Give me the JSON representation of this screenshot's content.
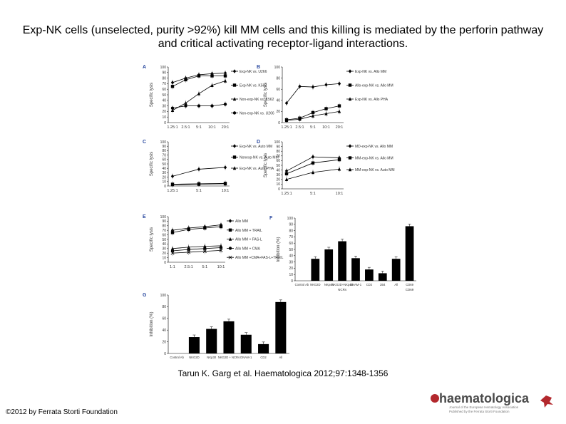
{
  "slide": {
    "title": "Exp-NK cells (unselected, purity >92%) kill MM cells and this killing is mediated by the perforin pathway and critical activating receptor-ligand interactions.",
    "citation": "Tarun K. Garg et al. Haematologica 2012;97:1348-1356",
    "copyright": "©2012 by Ferrata Storti Foundation",
    "logo": {
      "wordmark": "haematologica",
      "tagline_1": "Journal of the European Hematology Association",
      "tagline_2": "Published by the Ferrata Storti Foundation",
      "accent_color": "#b3282d",
      "text_color": "#4a4a4a"
    }
  },
  "chart_data": [
    {
      "panel": "A",
      "type": "line",
      "ylabel": "Specific lysis",
      "ylim": [
        0,
        100
      ],
      "yticks": [
        0,
        10,
        20,
        30,
        40,
        50,
        60,
        70,
        80,
        90,
        100
      ],
      "categories": [
        "1.25:1",
        "2.5:1",
        "5:1",
        "10:1",
        "20:1"
      ],
      "series": [
        {
          "name": "Exp-NK vs. U266",
          "values": [
            72,
            80,
            86,
            88,
            89
          ]
        },
        {
          "name": "Exp-NK vs. K562",
          "values": [
            65,
            77,
            84,
            84,
            84
          ]
        },
        {
          "name": "Non-exp-NK vs. K562",
          "values": [
            22,
            35,
            52,
            67,
            75
          ]
        },
        {
          "name": "Non-exp-NK vs. U266",
          "values": [
            26,
            30,
            30,
            30,
            33
          ]
        }
      ]
    },
    {
      "panel": "B",
      "type": "line",
      "ylabel": "Specific lysis",
      "ylim": [
        0,
        100
      ],
      "yticks": [
        0,
        20,
        40,
        60,
        80,
        100
      ],
      "categories": [
        "1.25:1",
        "2.5:1",
        "5:1",
        "10:1",
        "20:1"
      ],
      "series": [
        {
          "name": "Exp-NK vs. Allo MM",
          "values": [
            35,
            65,
            64,
            68,
            70
          ]
        },
        {
          "name": "Allo-exp-NK vs. Allo MM",
          "values": [
            5,
            8,
            18,
            25,
            30
          ]
        },
        {
          "name": "Exp-NK vs. Allo PHA",
          "values": [
            4,
            6,
            12,
            16,
            20
          ]
        }
      ]
    },
    {
      "panel": "C",
      "type": "line",
      "ylabel": "Specific lysis",
      "ylim": [
        0,
        100
      ],
      "yticks": [
        0,
        10,
        20,
        30,
        40,
        50,
        60,
        70,
        80,
        90,
        100
      ],
      "categories": [
        "1.25:1",
        "5:1",
        "10:1"
      ],
      "series": [
        {
          "name": "Exp-NK vs. Auto MM",
          "values": [
            22,
            38,
            42
          ]
        },
        {
          "name": "Nonexp-NK vs. Auto MM",
          "values": [
            4,
            5,
            6
          ]
        },
        {
          "name": "Exp-NK vs. Auto PHA",
          "values": [
            3,
            4,
            5
          ]
        }
      ]
    },
    {
      "panel": "D",
      "type": "line",
      "ylabel": "Specific lysis",
      "ylim": [
        0,
        100
      ],
      "yticks": [
        0,
        10,
        20,
        30,
        40,
        50,
        60,
        70,
        80,
        90,
        100
      ],
      "categories": [
        "1.25:1",
        "5:1",
        "10:1"
      ],
      "series": [
        {
          "name": "MD-exp-NK vs. Allo MM",
          "values": [
            38,
            68,
            66
          ]
        },
        {
          "name": "MM-exp-NK vs. Allo MM",
          "values": [
            32,
            55,
            62
          ]
        },
        {
          "name": "MM-exp-NK vs. Auto MM",
          "values": [
            20,
            35,
            42
          ]
        }
      ]
    },
    {
      "panel": "E",
      "type": "line",
      "ylabel": "Specific lysis",
      "ylim": [
        0,
        100
      ],
      "yticks": [
        0,
        10,
        20,
        30,
        40,
        50,
        60,
        70,
        80,
        90,
        100
      ],
      "categories": [
        "1:1",
        "2.5:1",
        "5:1",
        "10:1"
      ],
      "series": [
        {
          "name": "Allo MM",
          "values": [
            70,
            75,
            78,
            82
          ]
        },
        {
          "name": "Allo MM + TRAIL",
          "values": [
            65,
            72,
            75,
            78
          ]
        },
        {
          "name": "Allo MM + FAS-L",
          "values": [
            30,
            33,
            35,
            36
          ]
        },
        {
          "name": "Allo MM + CMA",
          "values": [
            25,
            28,
            30,
            32
          ]
        },
        {
          "name": "Allo MM +CMA+FAS-L+TRAIL",
          "values": [
            20,
            22,
            24,
            26
          ]
        }
      ]
    },
    {
      "panel": "F",
      "type": "bar",
      "ylabel": "Inhibition (%)",
      "ylim": [
        0,
        100
      ],
      "yticks": [
        0,
        10,
        20,
        30,
        40,
        50,
        60,
        70,
        80,
        90,
        100
      ],
      "categories": [
        "Control Ab",
        "NKG2D",
        "NKp46",
        "NKG2D+NKp46",
        "DNAM-1",
        "CD2",
        "2B4",
        "All",
        "CD69"
      ],
      "groups": [
        "NCRs",
        "CD69"
      ],
      "values": [
        0,
        35,
        50,
        63,
        36,
        18,
        12,
        35,
        87
      ]
    },
    {
      "panel": "G",
      "type": "bar",
      "ylabel": "Inhibition (%)",
      "ylim": [
        0,
        100
      ],
      "yticks": [
        0,
        20,
        40,
        60,
        80,
        100
      ],
      "categories": [
        "Control Ab",
        "NKG2D",
        "NKp30",
        "NKG2D + NCRs",
        "DNAM-1",
        "CD2",
        "All"
      ],
      "values": [
        0,
        28,
        42,
        55,
        32,
        16,
        88
      ]
    }
  ]
}
